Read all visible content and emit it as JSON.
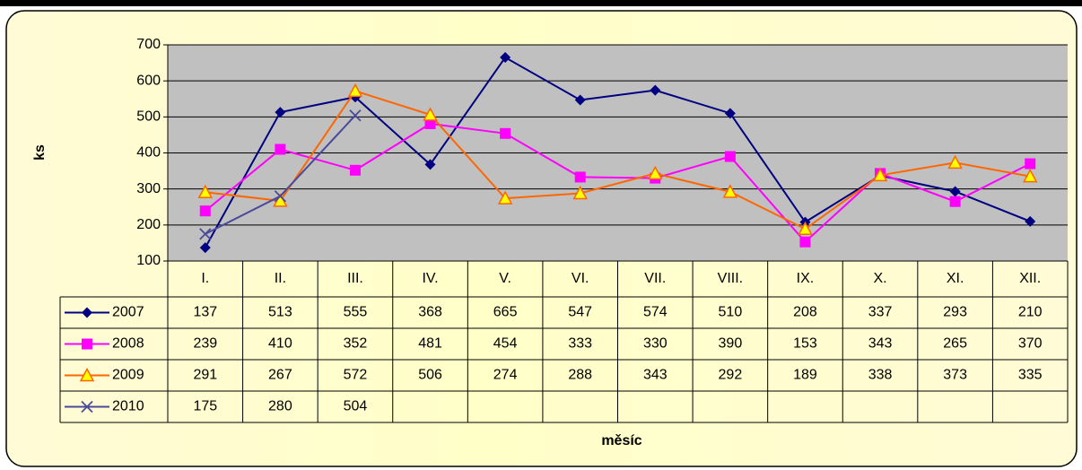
{
  "chart_data": {
    "type": "line",
    "y_label": "ks",
    "x_label": "měsíc",
    "categories": [
      "I.",
      "II.",
      "III.",
      "IV.",
      "V.",
      "VI.",
      "VII.",
      "VIII.",
      "IX.",
      "X.",
      "XI.",
      "XII."
    ],
    "series": [
      {
        "name": "2007",
        "color": "#000080",
        "marker": "diamond",
        "values": [
          137,
          513,
          555,
          368,
          665,
          547,
          574,
          510,
          208,
          337,
          293,
          210
        ]
      },
      {
        "name": "2008",
        "color": "#ff00ff",
        "marker": "square",
        "values": [
          239,
          410,
          352,
          481,
          454,
          333,
          330,
          390,
          153,
          343,
          265,
          370
        ]
      },
      {
        "name": "2009",
        "color": "#ff6600",
        "marker": "triangle",
        "values": [
          291,
          267,
          572,
          506,
          274,
          288,
          343,
          292,
          189,
          338,
          373,
          335
        ]
      },
      {
        "name": "2010",
        "color": "#4a4a9a",
        "marker": "x",
        "values": [
          175,
          280,
          504,
          null,
          null,
          null,
          null,
          null,
          null,
          null,
          null,
          null
        ]
      }
    ],
    "ylim": [
      100,
      700
    ],
    "yticks": [
      100,
      200,
      300,
      400,
      500,
      600,
      700
    ],
    "grid": true,
    "data_table": true
  }
}
